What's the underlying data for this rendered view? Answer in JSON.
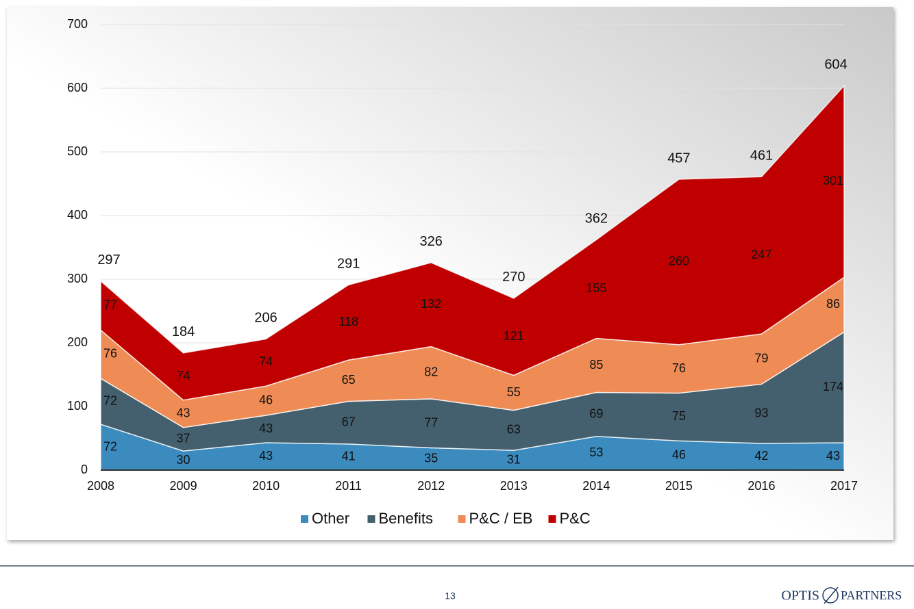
{
  "chart_data": {
    "type": "stacked-area",
    "categories": [
      "2008",
      "2009",
      "2010",
      "2011",
      "2012",
      "2013",
      "2014",
      "2015",
      "2016",
      "2017"
    ],
    "series": [
      {
        "name": "Other",
        "color": "#3b8bbf",
        "values": [
          72,
          30,
          43,
          41,
          35,
          31,
          53,
          46,
          42,
          43
        ]
      },
      {
        "name": "Benefits",
        "color": "#445f6e",
        "values": [
          72,
          37,
          43,
          67,
          77,
          63,
          69,
          75,
          93,
          174
        ]
      },
      {
        "name": "P&C / EB",
        "color": "#ef8c55",
        "values": [
          76,
          43,
          46,
          65,
          82,
          55,
          85,
          76,
          79,
          86
        ]
      },
      {
        "name": "P&C",
        "color": "#c00000",
        "values": [
          77,
          74,
          74,
          118,
          132,
          121,
          155,
          260,
          247,
          301
        ]
      }
    ],
    "totals": [
      297,
      184,
      206,
      291,
      326,
      270,
      362,
      457,
      461,
      604
    ],
    "ylim": [
      0,
      700
    ],
    "yticks": [
      0,
      100,
      200,
      300,
      400,
      500,
      600,
      700
    ],
    "grid": true,
    "legend": "bottom"
  },
  "footer": {
    "page_number": "13",
    "logo_left": "OPTIS",
    "logo_right": "PARTNERS"
  }
}
